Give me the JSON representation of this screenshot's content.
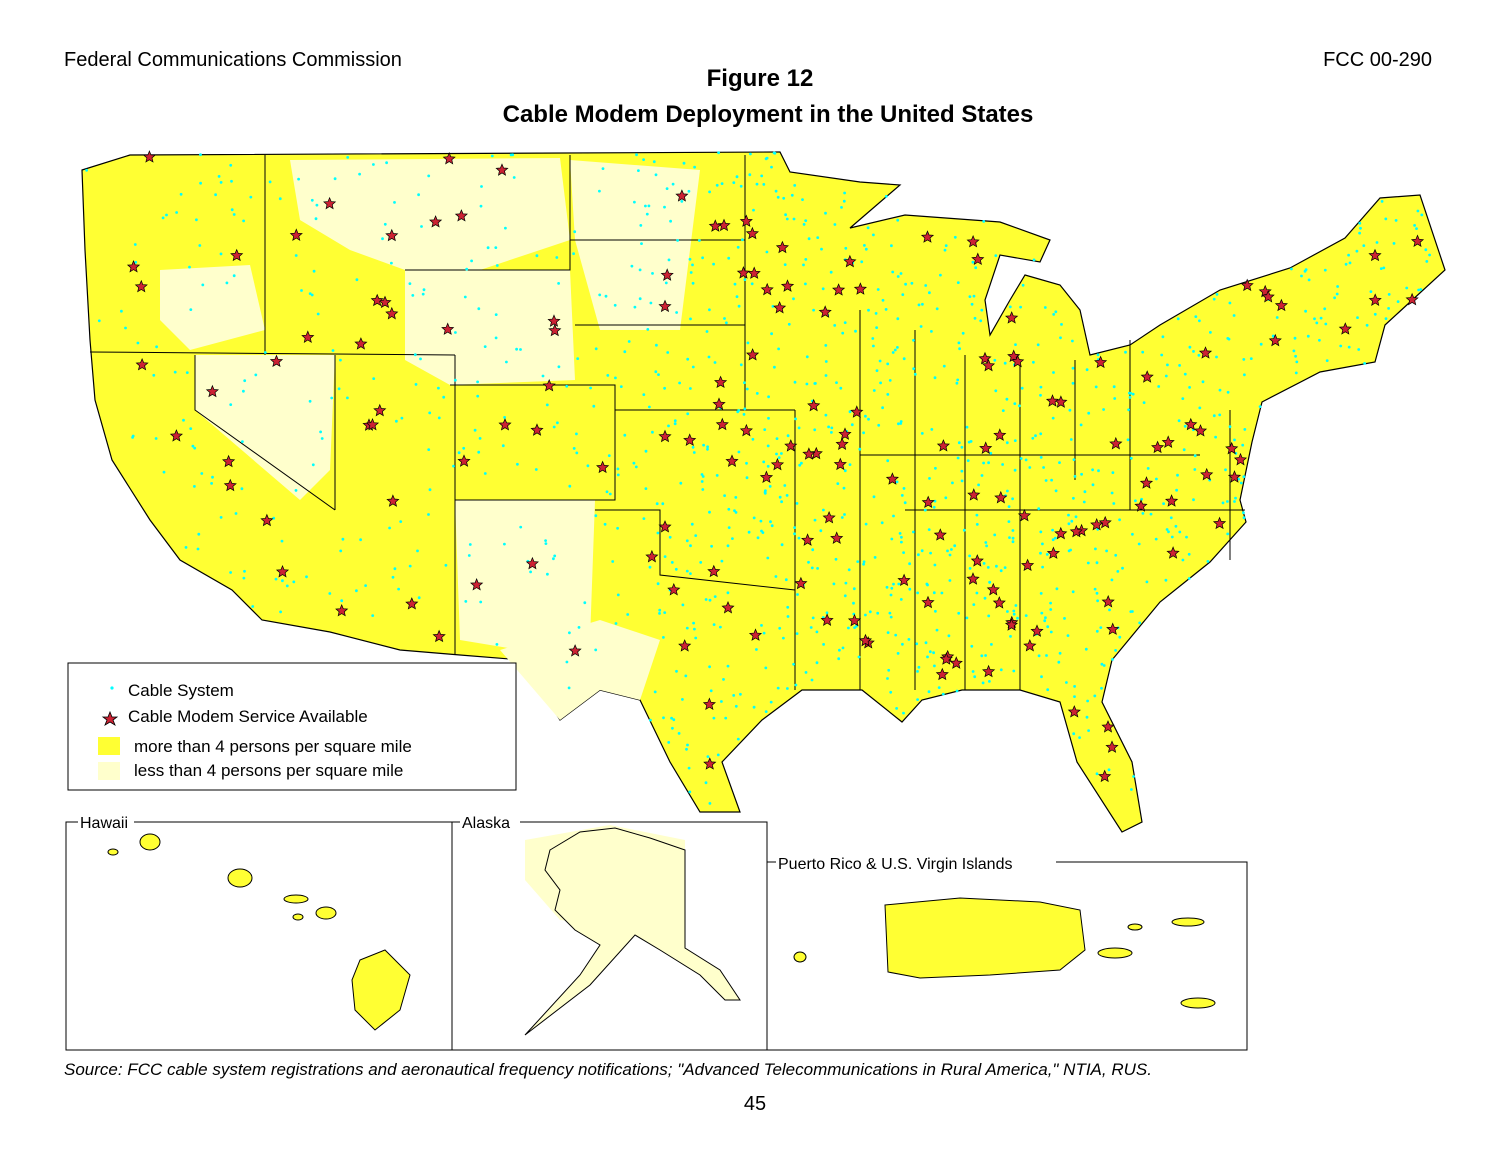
{
  "header": {
    "left": "Federal Communications Commission",
    "right": "FCC  00-290"
  },
  "title": "Figure 12",
  "subtitle": "Cable Modem Deployment in the United States",
  "legend": {
    "items": [
      "Cable System",
      "Cable Modem Service Available",
      "more than 4 persons per square mile",
      "less than 4 persons per square mile"
    ]
  },
  "insets": [
    "Hawaii",
    "Alaska",
    "Puerto Rico & U.S. Virgin Islands"
  ],
  "source": "Source: FCC cable system registrations and aeronautical frequency notifications; \"Advanced Telecommunications in Rural America,\" NTIA, RUS.",
  "page_number": "45"
}
